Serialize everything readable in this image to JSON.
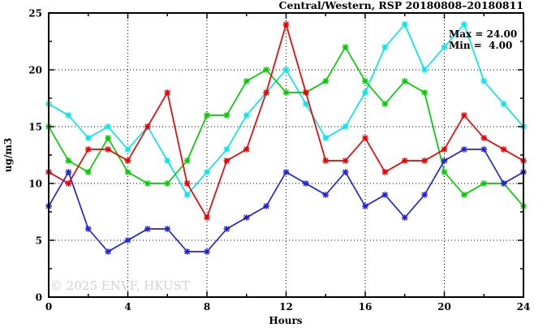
{
  "title": "Central/Western, RSP 20180808–20180811",
  "annotation": {
    "max_label": "Max = 24.00",
    "min_label": "Min =  4.00"
  },
  "watermark": "© 2025 ENVF, HKUST",
  "chart_data": {
    "type": "line",
    "title": "Central/Western, RSP 20180808–20180811",
    "xlabel": "Hours",
    "ylabel": "ug/m3",
    "xlim": [
      0,
      24
    ],
    "ylim": [
      0,
      25
    ],
    "x_major_ticks": [
      0,
      4,
      8,
      12,
      16,
      20,
      24
    ],
    "x_minor_ticks": [
      2,
      6,
      10,
      14,
      18,
      22
    ],
    "y_major_ticks": [
      0,
      5,
      10,
      15,
      20,
      25
    ],
    "y_minor_ticks": [
      2.5,
      7.5,
      12.5,
      17.5,
      22.5
    ],
    "grid": true,
    "legend_position": "none",
    "x": [
      0,
      1,
      2,
      3,
      4,
      5,
      6,
      7,
      8,
      9,
      10,
      11,
      12,
      13,
      14,
      15,
      16,
      17,
      18,
      19,
      20,
      21,
      22,
      23,
      24
    ],
    "series": [
      {
        "name": "red",
        "color": "#ee0000",
        "values": [
          11,
          10,
          13,
          13,
          12,
          15,
          18,
          10,
          7,
          12,
          13,
          18,
          24,
          18,
          12,
          12,
          14,
          11,
          12,
          12,
          13,
          16,
          14,
          13,
          12
        ]
      },
      {
        "name": "green",
        "color": "#00cc00",
        "values": [
          15,
          12,
          11,
          14,
          11,
          10,
          10,
          12,
          16,
          16,
          19,
          20,
          18,
          18,
          19,
          22,
          19,
          17,
          19,
          18,
          11,
          9,
          10,
          10,
          8
        ]
      },
      {
        "name": "blue",
        "color": "#2222dd",
        "values": [
          8,
          11,
          6,
          4,
          5,
          6,
          6,
          4,
          4,
          6,
          7,
          8,
          11,
          10,
          9,
          11,
          8,
          9,
          7,
          9,
          12,
          13,
          13,
          10,
          11
        ]
      },
      {
        "name": "cyan",
        "color": "#00e8e8",
        "values": [
          17,
          16,
          14,
          15,
          13,
          15,
          12,
          9,
          11,
          13,
          16,
          18,
          20,
          17,
          14,
          15,
          18,
          22,
          24,
          20,
          22,
          24,
          19,
          17,
          15
        ]
      }
    ],
    "stats": {
      "max": 24.0,
      "min": 4.0
    }
  }
}
